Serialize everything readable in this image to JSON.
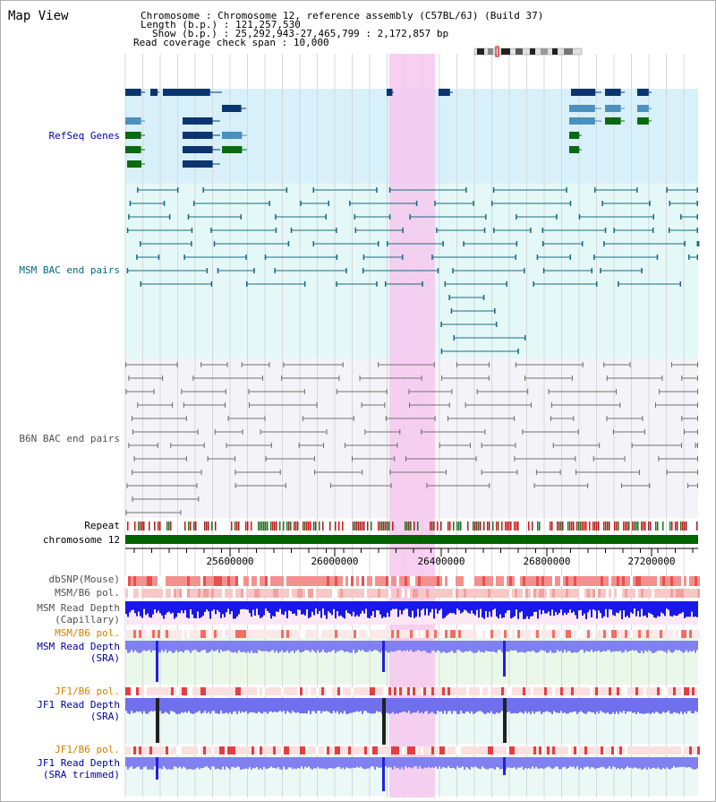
{
  "panel": {
    "title": "Map View"
  },
  "info": {
    "chromosome_label": "Chromosome",
    "chromosome_value": "Chromosome 12, reference assembly (C57BL/6J) (Build 37)",
    "length_label": "Length (b.p.)",
    "length_value": "121,257,530",
    "show_label": "Show (b.p.)",
    "show_value": "25,292,943-27,465,799 : 2,172,857 bp",
    "coverage_label": "Read coverage check span",
    "coverage_value": "10,000"
  },
  "tracks": {
    "refseq": "RefSeq Genes",
    "msm_bac": "MSM BAC end pairs",
    "b6n_bac": "B6N BAC end pairs",
    "repeat": "Repeat",
    "chromosome": "chromosome 12",
    "dbsnp": "dbSNP(Mouse)",
    "msm_b6_pol": "MSM/B6 pol.",
    "msm_depth_cap_1": "MSM Read Depth",
    "msm_depth_cap_2": "(Capillary)",
    "msm_b6_pol2": "MSM/B6 pol.",
    "msm_depth_sra_1": "MSM Read Depth",
    "msm_depth_sra_2": "(SRA)",
    "jf1_b6_pol": "JF1/B6 pol.",
    "jf1_depth_sra_1": "JF1 Read Depth",
    "jf1_depth_sra_2": "(SRA)",
    "jf1_b6_pol2": "JF1/B6 pol.",
    "jf1_depth_trim_1": "JF1 Read Depth",
    "jf1_depth_trim_2": "(SRA trimmed)"
  },
  "axis": {
    "ticks": [
      "25600000",
      "26000000",
      "26400000",
      "26800000",
      "27200000"
    ]
  },
  "colors": {
    "refseq_bg": "#d8f0fa",
    "msm_bg": "#e4f8f8",
    "b6n_bg": "#f4f4f8",
    "highlight": "#f6c8ee",
    "gene_dark": "#0a3570",
    "gene_mid": "#4a90c0",
    "gene_green": "#0a6a10",
    "msm_line": "#1a6a80",
    "b6n_line": "#707070",
    "chromosome": "#006400",
    "snp": "#f07070",
    "depth_blue": "#2020e0",
    "depth_light": "#8080f0"
  }
}
